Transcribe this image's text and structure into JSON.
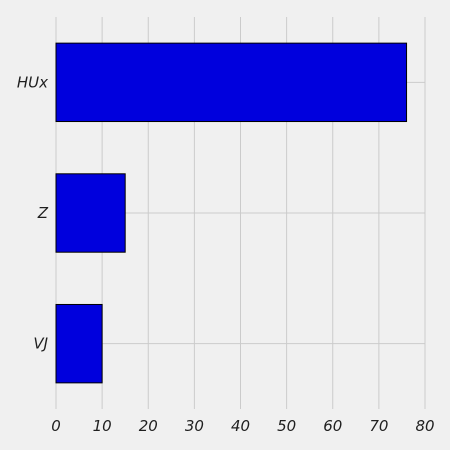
{
  "chart_data": {
    "type": "bar",
    "orientation": "horizontal",
    "categories": [
      "HUx",
      "Z",
      "VJ"
    ],
    "values": [
      76,
      15,
      10
    ],
    "title": "",
    "xlabel": "",
    "ylabel": "",
    "xlim": [
      0,
      80
    ],
    "xticks": [
      0,
      10,
      20,
      30,
      40,
      50,
      60,
      70,
      80
    ],
    "grid": true,
    "bar_color": "#0000dd",
    "bar_edge_color": "#000000",
    "background_color": "#f0f0f0",
    "grid_color": "#cbcbcb"
  }
}
